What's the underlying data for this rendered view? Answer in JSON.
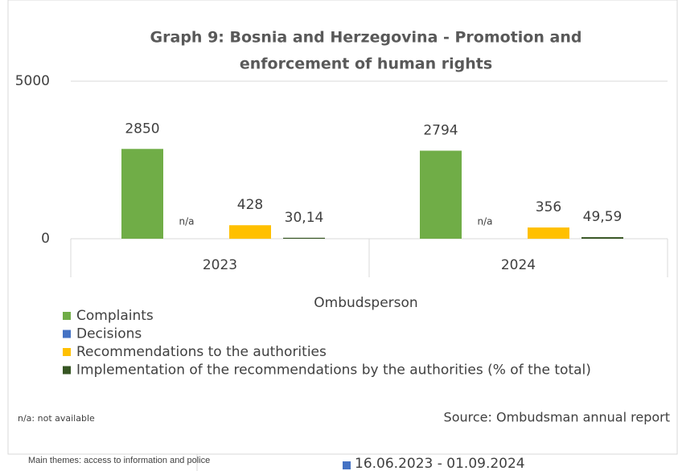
{
  "chart_data": {
    "type": "bar",
    "title": [
      "Graph 9: Bosnia and Herzegovina - Promotion and",
      "enforcement of human rights"
    ],
    "categories": [
      "2023",
      "2024"
    ],
    "x_label": "Ombudsperson",
    "series": [
      {
        "name": "Complaints",
        "color": "#70ad47",
        "values": [
          2850,
          2794
        ]
      },
      {
        "name": "Decisions",
        "color": "#4472c4",
        "values": [
          null,
          null
        ],
        "value_labels": [
          "n/a",
          "n/a"
        ]
      },
      {
        "name": "Recommendations to the authorities",
        "color": "#ffc000",
        "values": [
          428,
          356
        ]
      },
      {
        "name": "Implementation of the recommendations by the authorities (% of the total)",
        "color": "#375623",
        "values": [
          30.14,
          49.59
        ],
        "value_labels": [
          "30,14",
          "49,59"
        ]
      }
    ],
    "ylim": [
      0,
      5000
    ],
    "yticks": [
      0,
      5000
    ],
    "grid": true,
    "note": "n/a: not available",
    "source": "Source: Ombudsman annual report",
    "hidden_legend": {
      "name": "16.06.2023 - 01.09.2024",
      "color": "#4472c4"
    },
    "footer": "Main themes: access to information and police"
  }
}
